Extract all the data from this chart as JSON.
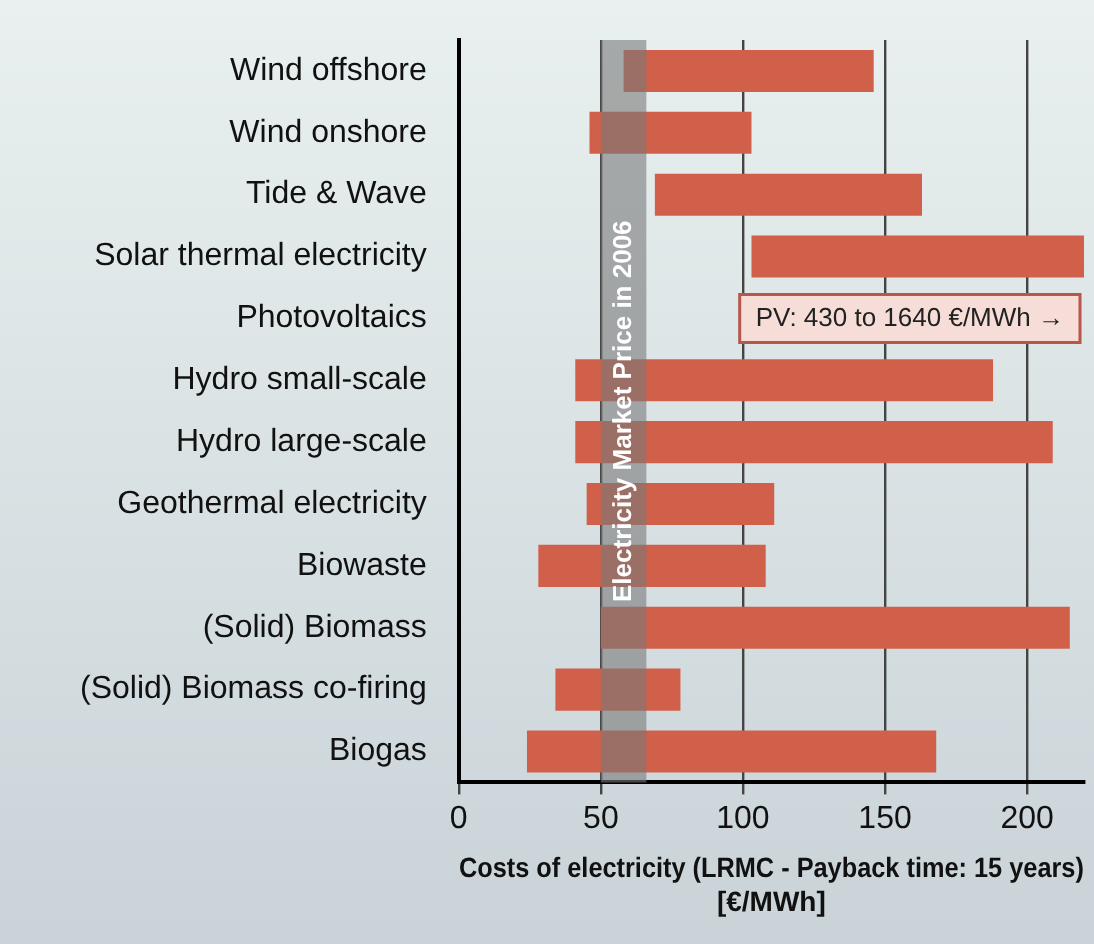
{
  "chart_data": {
    "type": "bar",
    "orientation": "horizontal",
    "xlabel": "Costs of electricity (LRMC - Payback time: 15 years) [€/MWh]",
    "categories": [
      "Wind offshore",
      "Wind onshore",
      "Tide & Wave",
      "Solar thermal electricity",
      "Photovoltaics",
      "Hydro small-scale",
      "Hydro large-scale",
      "Geothermal electricity",
      "Biowaste",
      "(Solid) Biomass",
      "(Solid) Biomass co-firing",
      "Biogas"
    ],
    "base": [
      58,
      46,
      69,
      103,
      null,
      41,
      41,
      45,
      28,
      50,
      34,
      24
    ],
    "values": [
      88,
      57,
      94,
      117,
      null,
      147,
      168,
      66,
      80,
      165,
      44,
      144
    ],
    "color": "#d0604a",
    "xlim": [
      0,
      220
    ],
    "xticks": [
      0,
      50,
      100,
      150,
      200
    ],
    "grid": "x",
    "legend": false,
    "bands": [
      {
        "axis": "x",
        "from": 50,
        "to": 66,
        "label": "Electricity Market Price in 2006",
        "color": "#7a7a7a"
      }
    ],
    "annotations": [
      "PV: 430 to 1640 €/MWh →"
    ]
  }
}
